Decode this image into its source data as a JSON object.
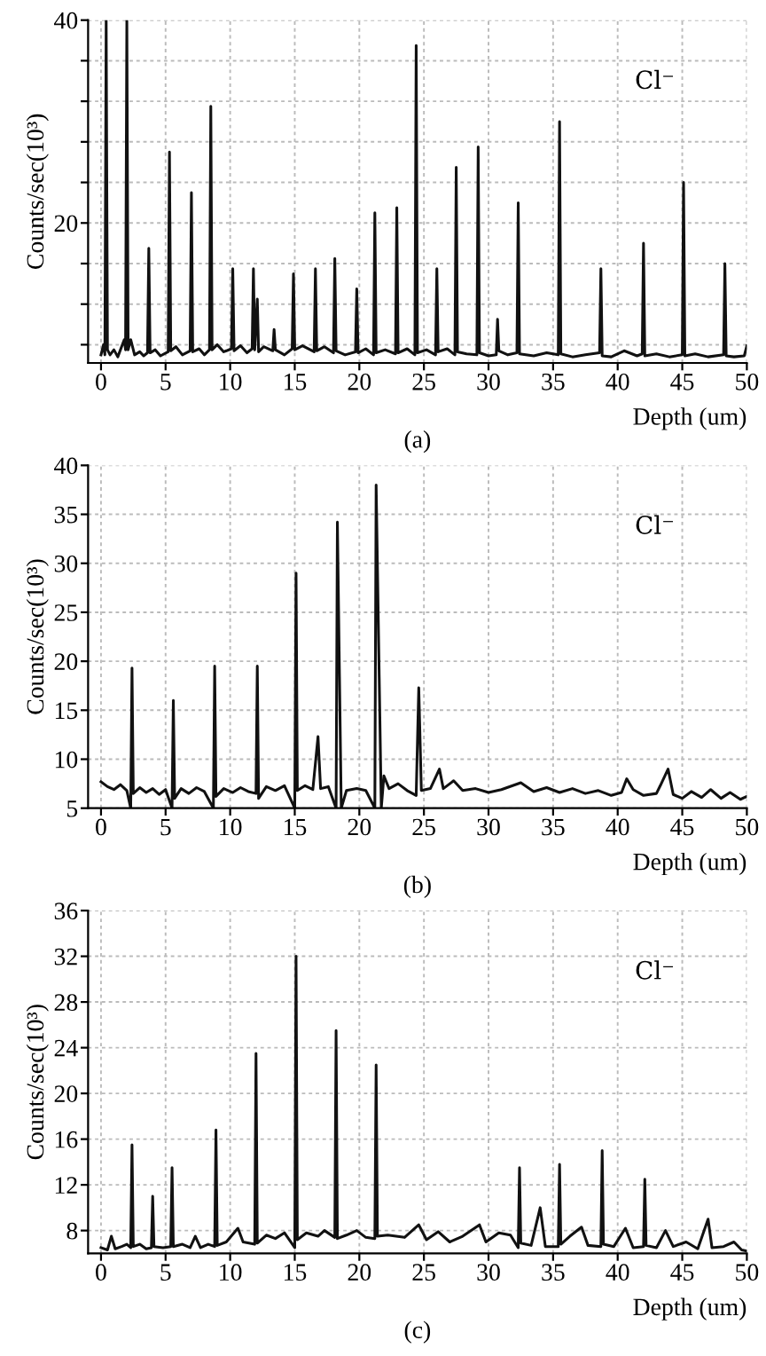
{
  "chart_data": [
    {
      "type": "line",
      "title": "(a)",
      "xlabel": "Depth (um)",
      "ylabel": "Counts/sec(10³)",
      "annotations": [
        "Cl⁻"
      ],
      "xlim": [
        -1,
        50
      ],
      "ylim": [
        6.2,
        40
      ],
      "xticks": [
        0,
        5,
        10,
        15,
        20,
        25,
        30,
        35,
        40,
        45,
        50
      ],
      "yticks": [
        {
          "value": 8,
          "label": null
        },
        {
          "value": 12,
          "label": null
        },
        {
          "value": 16,
          "label": null
        },
        20,
        {
          "value": 24,
          "label": null
        },
        {
          "value": 28,
          "label": null
        },
        {
          "value": 32,
          "label": null
        },
        {
          "value": 36,
          "label": null
        },
        40
      ],
      "grid": true,
      "line_style": "solid",
      "marker": "none",
      "series": [
        {
          "color": "#111111",
          "x": [
            0,
            0.2,
            0.3,
            0.4,
            0.5,
            0.7,
            1.0,
            1.3,
            1.8,
            1.9,
            2.0,
            2.1,
            2.3,
            2.6,
            3.0,
            3.3,
            3.6,
            3.7,
            3.8,
            4.2,
            4.6,
            5.2,
            5.3,
            5.4,
            5.8,
            6.3,
            6.9,
            7.0,
            7.1,
            7.6,
            8.0,
            8.4,
            8.5,
            8.6,
            9.0,
            9.5,
            10.1,
            10.2,
            10.3,
            10.8,
            11.3,
            11.7,
            11.8,
            11.9,
            12.1,
            12.2,
            12.6,
            13.3,
            13.4,
            13.5,
            14.2,
            14.8,
            14.9,
            15.0,
            15.6,
            16.5,
            16.6,
            16.7,
            17.3,
            18.0,
            18.1,
            18.2,
            18.9,
            19.7,
            19.8,
            19.9,
            20.5,
            21.1,
            21.2,
            21.3,
            22.0,
            22.8,
            22.9,
            23.0,
            23.7,
            24.3,
            24.4,
            24.5,
            25.2,
            25.9,
            26.0,
            26.1,
            26.8,
            27.4,
            27.5,
            27.6,
            28.3,
            29.1,
            29.2,
            29.3,
            30.0,
            30.6,
            30.7,
            30.8,
            31.5,
            32.2,
            32.3,
            32.4,
            33.5,
            34.5,
            35.4,
            35.5,
            35.6,
            36.5,
            37.5,
            38.6,
            38.7,
            38.8,
            39.5,
            40.5,
            41.5,
            41.9,
            42.0,
            42.1,
            43.0,
            44.0,
            45.0,
            45.1,
            45.2,
            46.0,
            47.0,
            48.2,
            48.3,
            48.4,
            49.0,
            49.8,
            50.0
          ],
          "values": [
            7.0,
            8.0,
            7.0,
            40,
            7.5,
            7.0,
            7.5,
            6.8,
            8.5,
            7.5,
            40,
            7.5,
            8.5,
            7.0,
            7.3,
            6.9,
            7.2,
            17.5,
            7.2,
            7.5,
            6.9,
            7.3,
            27,
            7.4,
            7.8,
            7.0,
            7.4,
            23,
            7.3,
            7.6,
            7.0,
            7.5,
            31.5,
            7.5,
            8.0,
            7.3,
            7.6,
            15.5,
            7.4,
            7.9,
            7.2,
            7.6,
            15.5,
            7.5,
            12.5,
            7.3,
            7.8,
            7.4,
            9.5,
            7.5,
            7.0,
            7.6,
            15,
            7.5,
            7.9,
            7.3,
            15.5,
            7.4,
            7.8,
            7.2,
            16.5,
            7.4,
            7.0,
            7.3,
            13.5,
            7.2,
            7.6,
            7.0,
            21,
            7.2,
            7.5,
            7.1,
            21.5,
            7.2,
            7.6,
            7.0,
            37.5,
            7.2,
            7.5,
            7.0,
            15.5,
            7.3,
            7.6,
            7.0,
            25.5,
            7.3,
            7.1,
            7.0,
            27.5,
            7.2,
            6.9,
            7.0,
            10.5,
            7.4,
            7.0,
            7.2,
            22,
            7.1,
            6.9,
            7.2,
            7.0,
            30,
            7.1,
            6.8,
            7.0,
            7.2,
            15.5,
            6.9,
            6.8,
            7.4,
            6.9,
            7.1,
            18,
            6.9,
            7.1,
            6.8,
            7.0,
            24,
            6.9,
            7.1,
            6.8,
            7.0,
            16,
            6.9,
            6.8,
            6.9,
            7.9
          ]
        }
      ]
    },
    {
      "type": "line",
      "title": "(b)",
      "xlabel": "Depth (um)",
      "ylabel": "Counts/sec(10³)",
      "annotations": [
        "Cl⁻"
      ],
      "xlim": [
        -1,
        50
      ],
      "ylim": [
        5,
        40
      ],
      "xticks": [
        0,
        5,
        10,
        15,
        20,
        25,
        30,
        35,
        40,
        45,
        50
      ],
      "yticks": [
        5,
        10,
        15,
        20,
        25,
        30,
        35,
        40
      ],
      "grid": true,
      "line_style": "solid",
      "marker": "none",
      "series": [
        {
          "color": "#111111",
          "x": [
            0,
            0.5,
            1.0,
            1.5,
            2.0,
            2.3,
            2.4,
            2.5,
            3.0,
            3.5,
            4.0,
            4.5,
            5.0,
            5.5,
            5.6,
            5.7,
            6.2,
            6.8,
            7.4,
            8.0,
            8.7,
            8.8,
            8.9,
            9.5,
            10.2,
            10.8,
            11.4,
            12.0,
            12.1,
            12.2,
            12.8,
            13.5,
            14.2,
            15.0,
            15.1,
            15.2,
            15.8,
            16.4,
            16.8,
            17.0,
            17.6,
            18.2,
            18.3,
            18.6,
            19.0,
            19.8,
            20.5,
            21.2,
            21.3,
            21.7,
            21.9,
            22.3,
            23.0,
            23.7,
            24.4,
            24.6,
            24.8,
            25.5,
            26.2,
            26.5,
            27.3,
            28.0,
            29.0,
            30.0,
            31.0,
            32.5,
            33.5,
            34.5,
            35.5,
            36.5,
            37.5,
            38.5,
            39.5,
            40.3,
            40.7,
            41.2,
            42.0,
            43.0,
            43.3,
            43.9,
            44.3,
            45.0,
            45.7,
            46.5,
            47.2,
            48.0,
            48.7,
            49.5,
            50.0
          ],
          "values": [
            7.7,
            7.2,
            6.9,
            7.4,
            6.8,
            5.0,
            19.3,
            6.5,
            7.1,
            6.6,
            7.0,
            6.4,
            6.9,
            5.0,
            16,
            6.0,
            7.0,
            6.5,
            7.1,
            6.7,
            5.0,
            19.5,
            6.2,
            7.0,
            6.6,
            7.1,
            6.7,
            6.5,
            19.5,
            6.0,
            7.2,
            6.8,
            7.3,
            5.0,
            29,
            6.8,
            7.3,
            6.9,
            12.3,
            7.0,
            7.2,
            5.0,
            34.2,
            5.0,
            6.8,
            7.0,
            6.8,
            5.0,
            38,
            5.0,
            8.3,
            7.0,
            7.5,
            6.8,
            6.3,
            17.3,
            6.8,
            7.0,
            9.0,
            7.0,
            7.8,
            6.8,
            7.0,
            6.6,
            6.9,
            7.6,
            6.7,
            7.1,
            6.6,
            7.0,
            6.5,
            6.8,
            6.3,
            6.6,
            8.0,
            6.9,
            6.3,
            6.5,
            7.3,
            9.0,
            6.4,
            6.0,
            6.7,
            6.1,
            6.9,
            6.0,
            6.6,
            5.9,
            6.2
          ]
        }
      ]
    },
    {
      "type": "line",
      "title": "(c)",
      "xlabel": "Depth (um)",
      "ylabel": "Counts/sec(10³)",
      "annotations": [
        "Cl⁻"
      ],
      "xlim": [
        -1,
        50
      ],
      "ylim": [
        6,
        36
      ],
      "xticks": [
        0,
        5,
        10,
        15,
        20,
        25,
        30,
        35,
        40,
        45,
        50
      ],
      "yticks": [
        8,
        12,
        16,
        20,
        24,
        28,
        32,
        36
      ],
      "grid": true,
      "line_style": "solid",
      "marker": "none",
      "series": [
        {
          "color": "#111111",
          "x": [
            0,
            0.5,
            0.8,
            1.1,
            1.6,
            2.0,
            2.3,
            2.4,
            2.5,
            3.0,
            3.5,
            3.9,
            4.0,
            4.1,
            4.8,
            5.4,
            5.5,
            5.6,
            6.3,
            6.9,
            7.3,
            7.7,
            8.3,
            8.8,
            8.9,
            9.0,
            9.7,
            10.6,
            11.0,
            11.9,
            12.0,
            12.1,
            12.8,
            13.5,
            14.2,
            15.0,
            15.1,
            15.2,
            15.9,
            16.8,
            17.3,
            18.1,
            18.2,
            18.3,
            19.0,
            19.8,
            20.5,
            21.2,
            21.3,
            21.4,
            22.2,
            23.5,
            24.6,
            25.2,
            26.1,
            27.0,
            28.0,
            29.3,
            29.8,
            30.8,
            31.7,
            32.3,
            32.4,
            32.5,
            33.3,
            34.0,
            34.4,
            35.4,
            35.5,
            35.6,
            36.3,
            37.2,
            37.7,
            38.7,
            38.8,
            38.9,
            39.7,
            40.6,
            41.2,
            42.0,
            42.1,
            42.2,
            43.0,
            43.7,
            44.3,
            45.3,
            46.2,
            47.0,
            47.3,
            48.2,
            49.0,
            49.6,
            50.0
          ],
          "values": [
            6.5,
            6.3,
            7.5,
            6.4,
            6.6,
            6.8,
            6.5,
            15.5,
            6.6,
            6.8,
            6.4,
            6.5,
            11,
            6.6,
            6.5,
            6.6,
            13.5,
            6.6,
            6.8,
            6.5,
            7.5,
            6.5,
            6.8,
            6.6,
            16.8,
            6.7,
            7.0,
            8.2,
            7.0,
            6.8,
            23.5,
            6.9,
            7.6,
            7.3,
            7.8,
            6.5,
            32,
            7.2,
            7.8,
            7.5,
            8.0,
            7.4,
            25.5,
            7.3,
            7.6,
            8.0,
            7.4,
            7.3,
            22.5,
            7.5,
            7.6,
            7.4,
            8.5,
            7.2,
            7.9,
            7.0,
            7.5,
            8.5,
            7.0,
            7.8,
            7.6,
            6.5,
            13.5,
            6.9,
            6.7,
            10,
            6.6,
            6.6,
            13.8,
            6.8,
            7.5,
            8.3,
            6.7,
            6.6,
            15,
            6.8,
            6.6,
            8.2,
            6.5,
            6.6,
            12.5,
            6.7,
            6.5,
            8.0,
            6.6,
            7.0,
            6.4,
            9.0,
            6.5,
            6.6,
            7.0,
            6.3,
            6.2
          ]
        }
      ]
    }
  ]
}
